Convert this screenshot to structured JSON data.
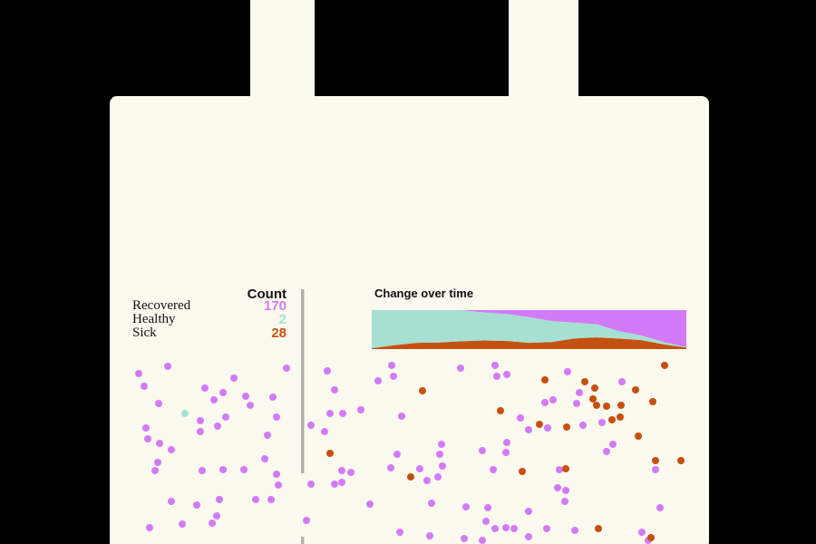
{
  "legend": {
    "header": "Count",
    "rows": [
      {
        "label": "Recovered",
        "count": "170",
        "color": "#d27af7"
      },
      {
        "label": "Healthy",
        "count": "2",
        "color": "#a6e0d2"
      },
      {
        "label": "Sick",
        "count": "28",
        "color": "#c6500f"
      }
    ]
  },
  "chart": {
    "title": "Change over time"
  },
  "colors": {
    "background": "#000000",
    "bag": "#fcf9ee",
    "divider": "#b3b1ab",
    "recovered": "#d27af7",
    "healthy": "#a6e0d2",
    "sick": "#c6500f"
  },
  "chart_data": {
    "type": "area",
    "stacked": true,
    "series": [
      {
        "key": "sick",
        "values": [
          2,
          10,
          16,
          17,
          20,
          22,
          21,
          16,
          18,
          27,
          30,
          27,
          23,
          12,
          4
        ]
      },
      {
        "key": "healthy",
        "values": [
          98,
          90,
          84,
          83,
          80,
          72,
          69,
          66,
          54,
          41,
          34,
          19,
          12,
          6,
          1
        ]
      },
      {
        "key": "recovered",
        "values": [
          0,
          0,
          0,
          0,
          0,
          6,
          10,
          18,
          28,
          32,
          36,
          54,
          65,
          82,
          95
        ]
      }
    ]
  }
}
